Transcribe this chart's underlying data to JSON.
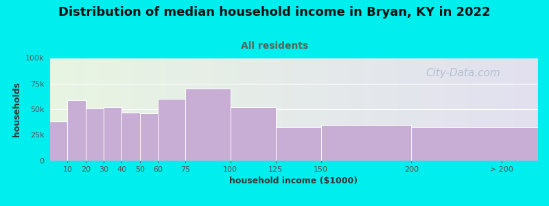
{
  "title": "Distribution of median household income in Bryan, KY in 2022",
  "subtitle": "All residents",
  "xlabel": "household income ($1000)",
  "ylabel": "households",
  "background_color": "#00EEEE",
  "plot_bg_color_topleft": "#e8f5e2",
  "plot_bg_color_topright": "#e8e8f0",
  "plot_bg_color_bottomleft": "#ddeedd",
  "plot_bg_color_bottomright": "#e0d8ee",
  "bar_color": "#c8aed4",
  "bar_edge_color": "#ffffff",
  "watermark": "City-Data.com",
  "x_labels": [
    "10",
    "20",
    "30",
    "40",
    "50",
    "60",
    "75",
    "100",
    "125",
    "150",
    "200",
    "> 200"
  ],
  "bar_lefts": [
    0,
    10,
    20,
    30,
    40,
    50,
    60,
    75,
    100,
    125,
    150,
    200
  ],
  "bar_rights": [
    10,
    20,
    30,
    40,
    50,
    60,
    75,
    100,
    125,
    150,
    200,
    270
  ],
  "bar_heights": [
    38000,
    59000,
    51000,
    52000,
    47000,
    46000,
    60000,
    70000,
    52000,
    33000,
    35000,
    33000
  ],
  "ylim": [
    0,
    100000
  ],
  "xlim_left": 0,
  "xlim_right": 270,
  "yticks": [
    0,
    25000,
    50000,
    75000,
    100000
  ],
  "ytick_labels": [
    "0",
    "25k",
    "50k",
    "75k",
    "100k"
  ],
  "title_fontsize": 13,
  "subtitle_fontsize": 10,
  "axis_label_fontsize": 9,
  "tick_fontsize": 8,
  "title_color": "#111111",
  "subtitle_color": "#556655",
  "watermark_color": "#aabbcc",
  "watermark_fontsize": 11
}
